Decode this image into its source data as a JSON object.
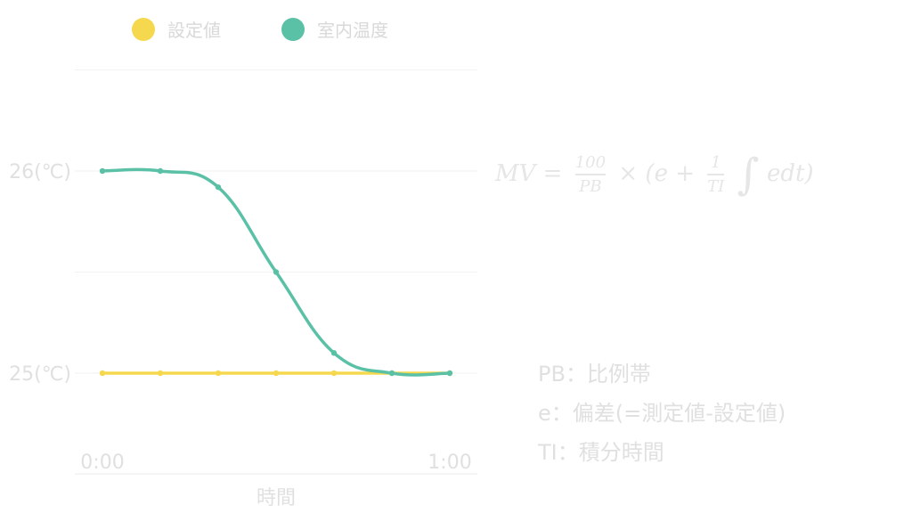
{
  "chart_data": {
    "type": "line",
    "x": [
      "0:00",
      "",
      "",
      "",
      "",
      "",
      "1:00"
    ],
    "series": [
      {
        "name": "設定値",
        "color": "#f5d84e",
        "values": [
          25,
          25,
          25,
          25,
          25,
          25,
          25
        ]
      },
      {
        "name": "室内温度",
        "color": "#5ac1a7",
        "values": [
          26,
          26,
          25.92,
          25.5,
          25.1,
          25,
          25
        ]
      }
    ],
    "xlabel": "時間",
    "ylabel": "",
    "yticks": [
      {
        "value": 26,
        "label": "26(℃)"
      },
      {
        "value": 25,
        "label": "25(℃)"
      }
    ],
    "xticks": [
      {
        "index": 0,
        "label": "0:00"
      },
      {
        "index": 6,
        "label": "1:00"
      }
    ],
    "ylim": [
      24.5,
      26.5
    ],
    "grid": true,
    "legend_position": "top-center"
  },
  "formula": {
    "lhs": "MV",
    "equals": "=",
    "frac1_num": "100",
    "frac1_den": "PB",
    "times": "×",
    "open": "(e +",
    "frac2_num": "1",
    "frac2_den": "TI",
    "integral": "∫",
    "tail": "edt)"
  },
  "notes": [
    "PB：比例帯",
    "e：偏差(=測定値-設定値)",
    "TI：積分時間"
  ]
}
